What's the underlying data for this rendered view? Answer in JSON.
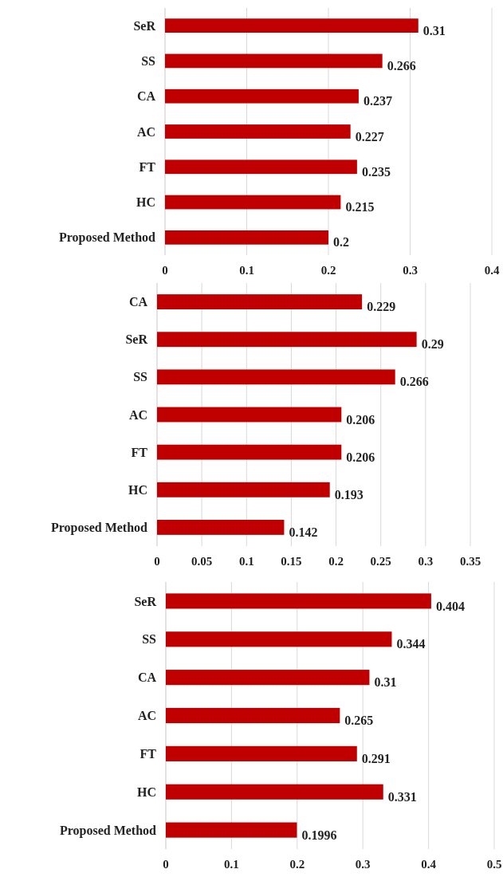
{
  "chart_data": [
    {
      "type": "bar",
      "orientation": "horizontal",
      "categories": [
        "SeR",
        "SS",
        "CA",
        "AC",
        "FT",
        "HC",
        "Proposed Method"
      ],
      "values": [
        0.31,
        0.266,
        0.237,
        0.227,
        0.235,
        0.215,
        0.2
      ],
      "color": "#c00000",
      "xlim": [
        0,
        0.4
      ],
      "xticks": [
        0,
        0.1,
        0.2,
        0.3,
        0.4
      ],
      "grid": "x",
      "data_labels": true
    },
    {
      "type": "bar",
      "orientation": "horizontal",
      "categories": [
        "CA",
        "SeR",
        "SS",
        "AC",
        "FT",
        "HC",
        "Proposed Method"
      ],
      "values": [
        0.229,
        0.29,
        0.266,
        0.206,
        0.206,
        0.193,
        0.142
      ],
      "color": "#c00000",
      "xlim": [
        0,
        0.35
      ],
      "xticks": [
        0,
        0.05,
        0.1,
        0.15,
        0.2,
        0.25,
        0.3,
        0.35
      ],
      "grid": "x",
      "data_labels": true
    },
    {
      "type": "bar",
      "orientation": "horizontal",
      "categories": [
        "SeR",
        "SS",
        "CA",
        "AC",
        "FT",
        "HC",
        "Proposed Method"
      ],
      "values": [
        0.404,
        0.344,
        0.31,
        0.265,
        0.291,
        0.331,
        0.1996
      ],
      "color": "#c00000",
      "xlim": [
        0,
        0.5
      ],
      "xticks": [
        0,
        0.1,
        0.2,
        0.3,
        0.4,
        0.5
      ],
      "grid": "x",
      "data_labels": true
    }
  ]
}
